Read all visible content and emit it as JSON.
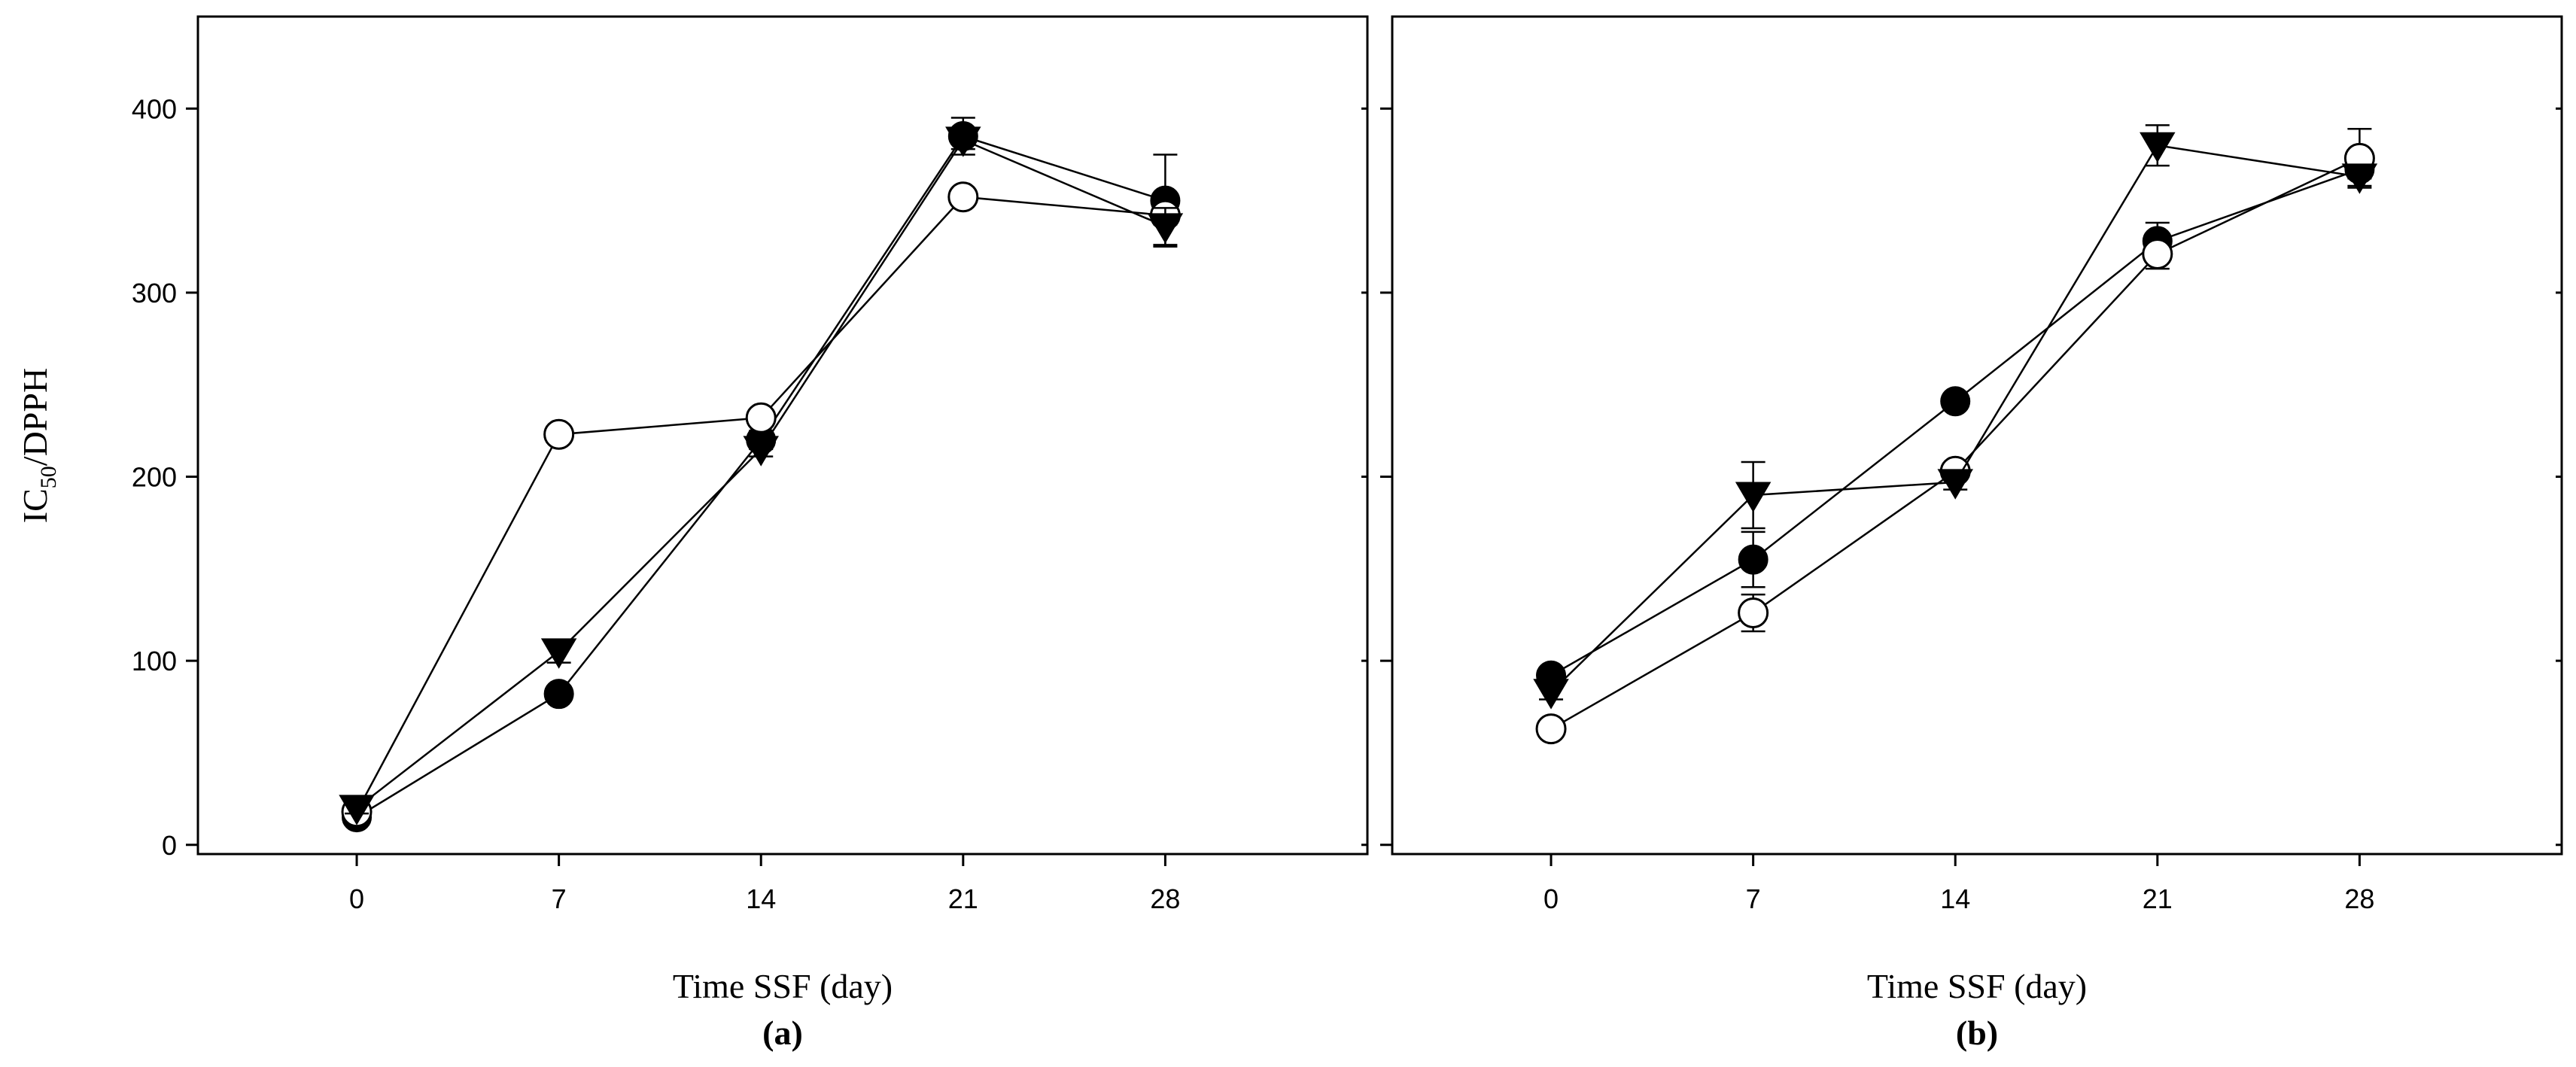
{
  "figure": {
    "ylabel_main": "IC",
    "ylabel_sub": "50",
    "ylabel_rest": "/DPPH"
  },
  "chart_data": [
    {
      "type": "line",
      "panel_label": "(a)",
      "xlabel": "Time SSF (day)",
      "ylabel": "IC50/DPPH",
      "xlim": [
        -5.5,
        35
      ],
      "ylim": [
        -5,
        450
      ],
      "xticks": [
        0,
        7,
        14,
        21,
        28
      ],
      "xtick_labels": [
        "0",
        "7",
        "14",
        "21",
        "28"
      ],
      "yticks": [
        0,
        100,
        200,
        300,
        400
      ],
      "ytick_labels": [
        "0",
        "100",
        "200",
        "300",
        "400"
      ],
      "series": [
        {
          "name": "filled circle",
          "marker": "filled-circle",
          "x": [
            0,
            7,
            14,
            21,
            28
          ],
          "values": [
            15,
            82,
            220,
            385,
            350
          ],
          "errors": [
            3,
            4,
            5,
            10,
            25
          ]
        },
        {
          "name": "open circle",
          "marker": "open-circle",
          "x": [
            0,
            7,
            14,
            21,
            28
          ],
          "values": [
            18,
            223,
            232,
            352,
            342
          ],
          "errors": [
            2,
            3,
            3,
            4,
            5
          ]
        },
        {
          "name": "filled triangle",
          "marker": "filled-triangle",
          "x": [
            0,
            7,
            14,
            21,
            28
          ],
          "values": [
            20,
            105,
            215,
            383,
            336
          ],
          "errors": [
            3,
            6,
            4,
            5,
            10
          ]
        }
      ]
    },
    {
      "type": "line",
      "panel_label": "(b)",
      "xlabel": "Time SSF (day)",
      "ylabel": "",
      "xlim": [
        -5.5,
        35
      ],
      "ylim": [
        -5,
        450
      ],
      "xticks": [
        0,
        7,
        14,
        21,
        28
      ],
      "xtick_labels": [
        "0",
        "7",
        "14",
        "21",
        "28"
      ],
      "yticks": [
        0,
        100,
        200,
        300,
        400
      ],
      "ytick_labels": [],
      "series": [
        {
          "name": "filled circle",
          "marker": "filled-circle",
          "x": [
            0,
            7,
            14,
            21,
            28
          ],
          "values": [
            92,
            155,
            241,
            328,
            367
          ],
          "errors": [
            3,
            15,
            4,
            10,
            5
          ]
        },
        {
          "name": "open circle",
          "marker": "open-circle",
          "x": [
            0,
            7,
            14,
            21,
            28
          ],
          "values": [
            63,
            126,
            203,
            321,
            373
          ],
          "errors": [
            3,
            10,
            4,
            8,
            16
          ]
        },
        {
          "name": "filled triangle",
          "marker": "filled-triangle",
          "x": [
            0,
            7,
            14,
            21,
            28
          ],
          "values": [
            83,
            190,
            197,
            380,
            363
          ],
          "errors": [
            4,
            18,
            4,
            11,
            5
          ]
        }
      ]
    }
  ]
}
